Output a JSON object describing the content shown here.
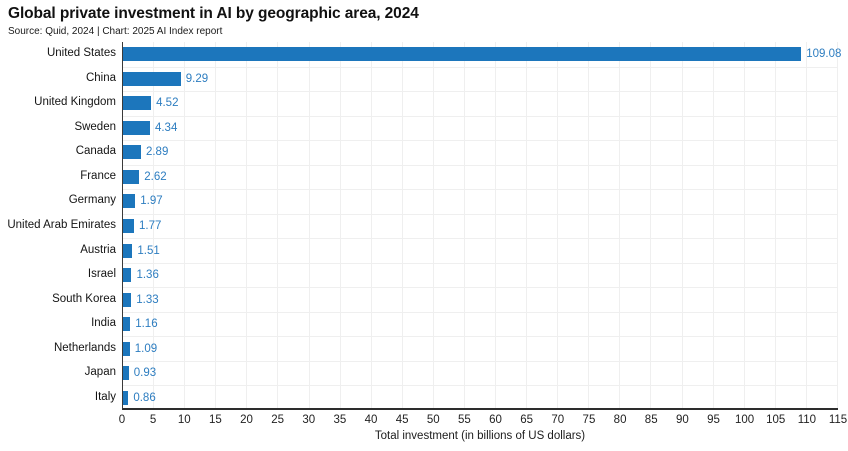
{
  "header": {
    "title": "Global private investment in AI by geographic area, 2024",
    "source_line": "Source: Quid, 2024 | Chart: 2025 AI Index report"
  },
  "chart_data": {
    "type": "bar",
    "orientation": "horizontal",
    "title": "Global private investment in AI by geographic area, 2024",
    "subtitle": "Source: Quid, 2024 | Chart: 2025 AI Index report",
    "categories": [
      "United States",
      "China",
      "United Kingdom",
      "Sweden",
      "Canada",
      "France",
      "Germany",
      "United Arab Emirates",
      "Austria",
      "Israel",
      "South Korea",
      "India",
      "Netherlands",
      "Japan",
      "Italy"
    ],
    "values": [
      109.08,
      9.29,
      4.52,
      4.34,
      2.89,
      2.62,
      1.97,
      1.77,
      1.51,
      1.36,
      1.33,
      1.16,
      1.09,
      0.93,
      0.86
    ],
    "value_labels": [
      "109.08",
      "9.29",
      "4.52",
      "4.34",
      "2.89",
      "2.62",
      "1.97",
      "1.77",
      "1.51",
      "1.36",
      "1.33",
      "1.16",
      "1.09",
      "0.93",
      "0.86"
    ],
    "xlabel": "Total investment (in billions of US dollars)",
    "ylabel": "",
    "xlim": [
      0,
      115
    ],
    "xticks": [
      0,
      5,
      10,
      15,
      20,
      25,
      30,
      35,
      40,
      45,
      50,
      55,
      60,
      65,
      70,
      75,
      80,
      85,
      90,
      95,
      100,
      105,
      110,
      115
    ],
    "grid": true,
    "legend": "none",
    "colors": {
      "bar": "#1c76bc",
      "value_label": "#2d7dc0",
      "grid": "#efefef",
      "axis": "#2d2d2d",
      "text": "#141414",
      "background": "#ffffff"
    }
  }
}
